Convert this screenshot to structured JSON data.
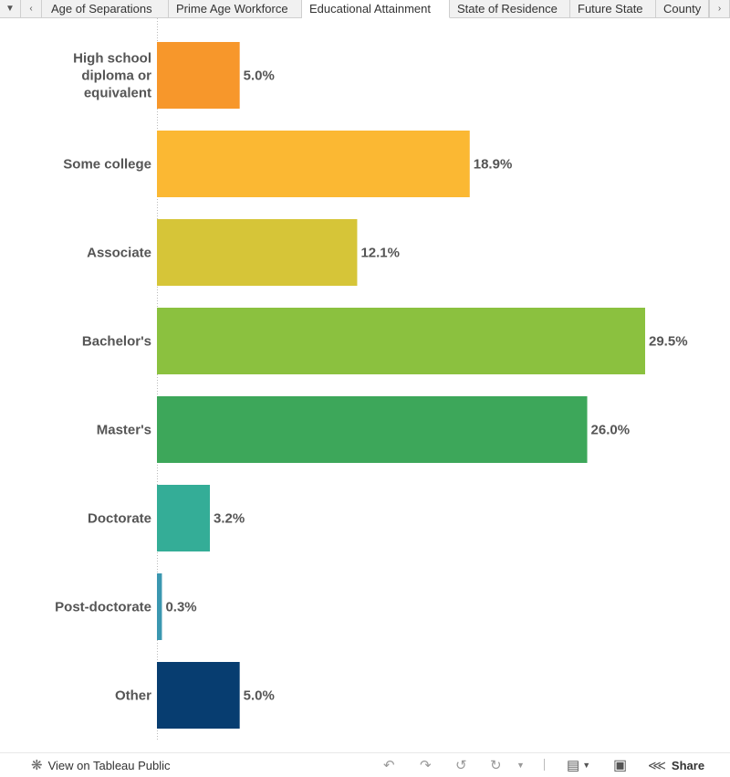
{
  "tabs": [
    {
      "label": "Age of Separations",
      "active": false
    },
    {
      "label": "Prime Age Workforce",
      "active": false
    },
    {
      "label": "Educational Attainment",
      "active": true
    },
    {
      "label": "State of Residence",
      "active": false
    },
    {
      "label": "Future State",
      "active": false
    },
    {
      "label": "County",
      "active": false
    }
  ],
  "tabbar": {
    "menu_icon": "caret-down-icon",
    "prev_icon": "chevron-left-icon",
    "next_icon": "chevron-right-icon"
  },
  "chart_data": {
    "type": "bar",
    "orientation": "horizontal",
    "categories": [
      [
        "High school",
        "diploma or",
        "equivalent"
      ],
      [
        "Some college"
      ],
      [
        "Associate"
      ],
      [
        "Bachelor's"
      ],
      [
        "Master's"
      ],
      [
        "Doctorate"
      ],
      [
        "Post-doctorate"
      ],
      [
        "Other"
      ]
    ],
    "values": [
      5.0,
      18.9,
      12.1,
      29.5,
      26.0,
      3.2,
      0.3,
      5.0
    ],
    "value_labels": [
      "5.0%",
      "18.9%",
      "12.1%",
      "29.5%",
      "26.0%",
      "3.2%",
      "0.3%",
      "5.0%"
    ],
    "colors": [
      "#f7972b",
      "#fbb833",
      "#d6c538",
      "#8bc13f",
      "#3da75a",
      "#34ad97",
      "#3b97b0",
      "#073d70"
    ],
    "unit": "%",
    "xlim": [
      0,
      29.5
    ],
    "grid": false
  },
  "footer": {
    "view_label": "View on Tableau Public",
    "share_label": "Share"
  }
}
